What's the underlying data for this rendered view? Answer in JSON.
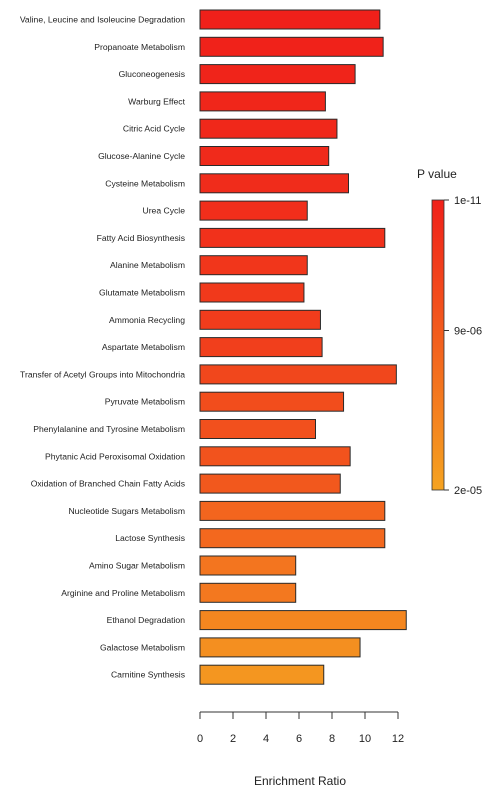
{
  "chart_data": {
    "type": "bar",
    "orientation": "horizontal",
    "categories": [
      "Valine, Leucine and Isoleucine Degradation",
      "Propanoate Metabolism",
      "Gluconeogenesis",
      "Warburg Effect",
      "Citric Acid Cycle",
      "Glucose-Alanine Cycle",
      "Cysteine Metabolism",
      "Urea Cycle",
      "Fatty Acid Biosynthesis",
      "Alanine Metabolism",
      "Glutamate Metabolism",
      "Ammonia Recycling",
      "Aspartate Metabolism",
      "Transfer of Acetyl Groups into Mitochondria",
      "Pyruvate Metabolism",
      "Phenylalanine and Tyrosine Metabolism",
      "Phytanic Acid Peroxisomal Oxidation",
      "Oxidation of Branched Chain Fatty Acids",
      "Nucleotide Sugars Metabolism",
      "Lactose Synthesis",
      "Amino Sugar Metabolism",
      "Arginine and Proline Metabolism",
      "Ethanol Degradation",
      "Galactose Metabolism",
      "Carnitine Synthesis"
    ],
    "values": [
      10.9,
      11.1,
      9.4,
      7.6,
      8.3,
      7.8,
      9.0,
      6.5,
      11.2,
      6.5,
      6.3,
      7.3,
      7.4,
      11.9,
      8.7,
      7.0,
      9.1,
      8.5,
      11.2,
      11.2,
      5.8,
      5.8,
      12.5,
      9.7,
      7.5
    ],
    "p_values": [
      1e-11,
      3e-07,
      6e-07,
      9e-07,
      1.2e-06,
      1.5e-06,
      1.8e-06,
      2.2e-06,
      2.6e-06,
      3.4e-06,
      3.8e-06,
      4.3e-06,
      4.8e-06,
      6e-06,
      6.8e-06,
      7.3e-06,
      7.8e-06,
      8.6e-06,
      1.05e-05,
      1.1e-05,
      1.3e-05,
      1.35e-05,
      1.55e-05,
      1.7e-05,
      1.8e-05
    ],
    "xlabel": "Enrichment Ratio",
    "ylabel": "",
    "xlim": [
      0,
      12
    ],
    "xticks": [
      0,
      2,
      4,
      6,
      8,
      10,
      12
    ],
    "grid": false,
    "legend": {
      "title": "P value",
      "placement": "right",
      "ticks": [
        "1e-11",
        "9e-06",
        "2e-05"
      ],
      "tick_values": [
        1e-11,
        9e-06,
        2e-05
      ],
      "range": [
        1e-11,
        2e-05
      ],
      "colors": [
        "#f0201a",
        "#f5a321"
      ]
    }
  }
}
